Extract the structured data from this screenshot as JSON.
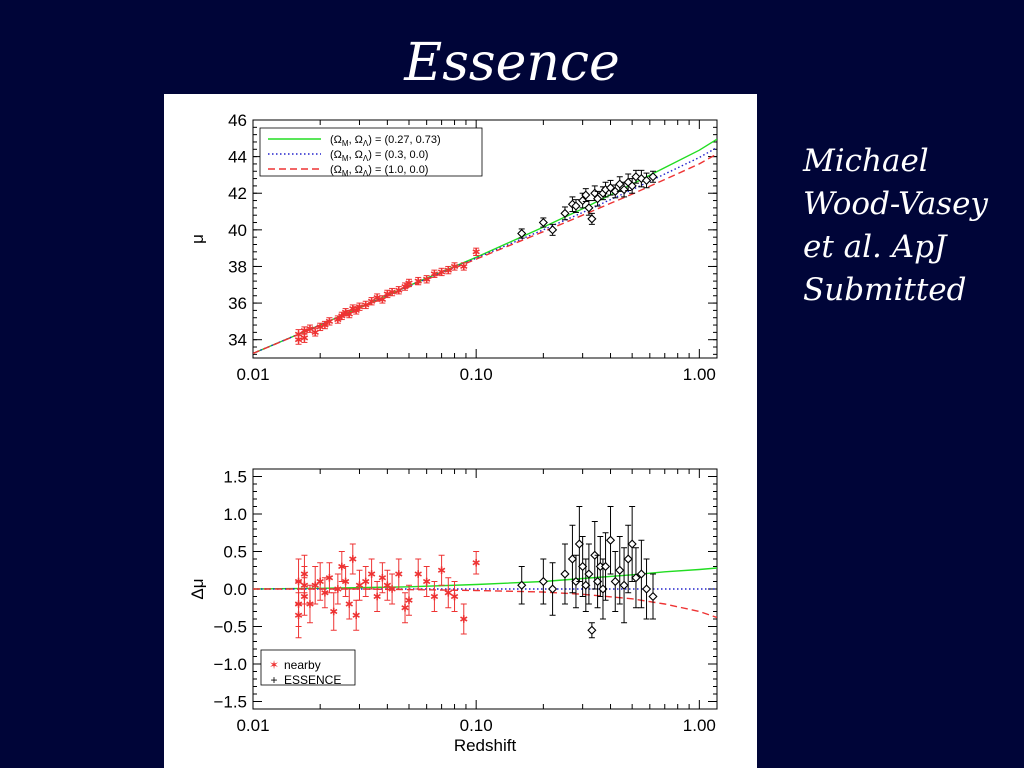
{
  "slide": {
    "title": "Essence",
    "credit_lines": [
      "Michael",
      "Wood-Vasey",
      "et al. ApJ",
      "Submitted"
    ],
    "background_color": "#000538",
    "title_color": "#ffffff"
  },
  "chart_data": [
    {
      "type": "scatter",
      "xscale": "log",
      "xlim": [
        0.01,
        1.2
      ],
      "ylim": [
        33.0,
        46.0
      ],
      "xticklabels": [
        "0.01",
        "0.10",
        "1.00"
      ],
      "xtickvalues": [
        0.01,
        0.1,
        1.0
      ],
      "yticks": [
        34,
        36,
        38,
        40,
        42,
        44,
        46
      ],
      "xlabel": "",
      "ylabel": "μ",
      "legend_position": "top-left",
      "legend": [
        {
          "label": "(ΩM, ΩΛ) = (0.27, 0.73)",
          "style": "solid",
          "color": "#22dd22"
        },
        {
          "label": "(ΩM, ΩΛ) = (0.3, 0.0)",
          "style": "dotted",
          "color": "#2222cc"
        },
        {
          "label": "(ΩM, ΩΛ) = (1.0, 0.0)",
          "style": "dashed",
          "color": "#ee3333"
        }
      ],
      "model_curves": [
        {
          "name": "(0.27, 0.73)",
          "color": "#22dd22",
          "style": "solid",
          "x": [
            0.01,
            0.02,
            0.05,
            0.1,
            0.2,
            0.3,
            0.5,
            0.7,
            1.0,
            1.2
          ],
          "y": [
            33.25,
            34.8,
            36.95,
            38.5,
            40.15,
            41.15,
            42.5,
            43.4,
            44.35,
            44.95
          ]
        },
        {
          "name": "(0.3, 0.0)",
          "color": "#2222cc",
          "style": "dotted",
          "x": [
            0.01,
            0.02,
            0.05,
            0.1,
            0.2,
            0.3,
            0.5,
            0.7,
            1.0,
            1.2
          ],
          "y": [
            33.25,
            34.8,
            36.92,
            38.45,
            40.0,
            40.95,
            42.2,
            43.05,
            43.95,
            44.5
          ]
        },
        {
          "name": "(1.0, 0.0)",
          "color": "#ee3333",
          "style": "dashed",
          "x": [
            0.01,
            0.02,
            0.05,
            0.1,
            0.2,
            0.3,
            0.5,
            0.7,
            1.0,
            1.2
          ],
          "y": [
            33.25,
            34.78,
            36.88,
            38.4,
            39.9,
            40.8,
            41.95,
            42.75,
            43.6,
            44.15
          ]
        }
      ],
      "series": [
        {
          "name": "nearby",
          "marker": "asterisk",
          "color": "#ee3333",
          "x": [
            0.016,
            0.016,
            0.017,
            0.017,
            0.018,
            0.019,
            0.02,
            0.021,
            0.022,
            0.024,
            0.025,
            0.026,
            0.027,
            0.028,
            0.029,
            0.03,
            0.032,
            0.034,
            0.036,
            0.038,
            0.04,
            0.042,
            0.045,
            0.048,
            0.05,
            0.055,
            0.06,
            0.065,
            0.07,
            0.075,
            0.08,
            0.088,
            0.1
          ],
          "y": [
            34.0,
            34.3,
            34.1,
            34.5,
            34.6,
            34.4,
            34.7,
            34.8,
            35.0,
            35.1,
            35.3,
            35.5,
            35.4,
            35.7,
            35.6,
            35.8,
            35.9,
            36.1,
            36.3,
            36.2,
            36.5,
            36.6,
            36.7,
            36.9,
            37.1,
            37.2,
            37.3,
            37.6,
            37.7,
            37.8,
            38.0,
            38.0,
            38.8
          ],
          "err": [
            0.25,
            0.25,
            0.25,
            0.2,
            0.2,
            0.2,
            0.2,
            0.2,
            0.2,
            0.2,
            0.2,
            0.2,
            0.2,
            0.2,
            0.2,
            0.2,
            0.2,
            0.2,
            0.2,
            0.2,
            0.2,
            0.2,
            0.2,
            0.2,
            0.2,
            0.2,
            0.2,
            0.2,
            0.2,
            0.2,
            0.2,
            0.2,
            0.2
          ]
        },
        {
          "name": "ESSENCE",
          "marker": "diamond",
          "color": "#000000",
          "x": [
            0.16,
            0.2,
            0.22,
            0.25,
            0.27,
            0.28,
            0.3,
            0.31,
            0.32,
            0.33,
            0.34,
            0.35,
            0.37,
            0.38,
            0.4,
            0.42,
            0.44,
            0.46,
            0.48,
            0.5,
            0.52,
            0.55,
            0.58,
            0.62
          ],
          "y": [
            39.8,
            40.4,
            40.0,
            40.9,
            41.4,
            41.3,
            41.6,
            41.9,
            41.2,
            40.6,
            42.0,
            41.7,
            42.0,
            42.2,
            42.3,
            42.1,
            42.5,
            42.2,
            42.6,
            42.4,
            42.9,
            42.8,
            42.7,
            42.9
          ],
          "err": [
            0.25,
            0.25,
            0.3,
            0.35,
            0.4,
            0.35,
            0.4,
            0.35,
            0.4,
            0.3,
            0.4,
            0.4,
            0.35,
            0.4,
            0.4,
            0.35,
            0.4,
            0.4,
            0.45,
            0.4,
            0.35,
            0.45,
            0.4,
            0.3
          ]
        }
      ]
    },
    {
      "type": "scatter",
      "xscale": "log",
      "xlim": [
        0.01,
        1.2
      ],
      "ylim": [
        -1.6,
        1.6
      ],
      "xticklabels": [
        "0.01",
        "0.10",
        "1.00"
      ],
      "xtickvalues": [
        0.01,
        0.1,
        1.0
      ],
      "yticklabels": [
        "1.5",
        "1.0",
        "0.5",
        "0.0",
        "−0.5",
        "−1.0",
        "−1.5"
      ],
      "ytickvalues": [
        1.5,
        1.0,
        0.5,
        0.0,
        -0.5,
        -1.0,
        -1.5
      ],
      "xlabel": "Redshift",
      "ylabel": "Δμ",
      "legend_position": "bottom-left",
      "legend": [
        {
          "label": "nearby",
          "symbol": "✶",
          "color": "#ee3333"
        },
        {
          "label": "ESSENCE",
          "symbol": "+",
          "color": "#000000"
        }
      ],
      "model_curves": [
        {
          "name": "(0.27, 0.73)",
          "color": "#22dd22",
          "style": "solid",
          "x": [
            0.01,
            0.02,
            0.05,
            0.1,
            0.2,
            0.3,
            0.5,
            0.7,
            1.0,
            1.2
          ],
          "y": [
            0.0,
            0.01,
            0.03,
            0.06,
            0.1,
            0.14,
            0.19,
            0.23,
            0.26,
            0.28
          ]
        },
        {
          "name": "(0.3, 0.0)",
          "color": "#2222cc",
          "style": "dotted",
          "x": [
            0.01,
            1.2
          ],
          "y": [
            0.0,
            0.0
          ]
        },
        {
          "name": "(1.0, 0.0)",
          "color": "#ee3333",
          "style": "dashed",
          "x": [
            0.01,
            0.03,
            0.06,
            0.1,
            0.2,
            0.3,
            0.5,
            0.7,
            1.0,
            1.2
          ],
          "y": [
            0.0,
            0.0,
            -0.01,
            -0.02,
            -0.04,
            -0.07,
            -0.13,
            -0.2,
            -0.3,
            -0.38
          ]
        }
      ],
      "series": [
        {
          "name": "nearby",
          "marker": "asterisk",
          "color": "#ee3333",
          "x": [
            0.016,
            0.016,
            0.016,
            0.017,
            0.017,
            0.017,
            0.018,
            0.019,
            0.02,
            0.021,
            0.022,
            0.023,
            0.024,
            0.025,
            0.026,
            0.027,
            0.028,
            0.029,
            0.03,
            0.032,
            0.034,
            0.036,
            0.038,
            0.04,
            0.042,
            0.045,
            0.048,
            0.05,
            0.055,
            0.06,
            0.065,
            0.07,
            0.075,
            0.08,
            0.088,
            0.1
          ],
          "y": [
            0.1,
            -0.2,
            -0.35,
            0.2,
            -0.1,
            0.05,
            -0.2,
            0.05,
            0.1,
            -0.05,
            0.15,
            -0.3,
            0.0,
            0.3,
            0.1,
            -0.2,
            0.4,
            -0.35,
            0.05,
            0.1,
            0.2,
            -0.1,
            0.15,
            0.05,
            0.0,
            0.2,
            -0.25,
            -0.15,
            0.2,
            0.1,
            -0.1,
            0.25,
            -0.05,
            -0.1,
            -0.4,
            0.35
          ],
          "err": [
            0.3,
            0.3,
            0.3,
            0.25,
            0.25,
            0.25,
            0.25,
            0.25,
            0.25,
            0.2,
            0.2,
            0.25,
            0.2,
            0.2,
            0.2,
            0.2,
            0.2,
            0.2,
            0.2,
            0.2,
            0.2,
            0.2,
            0.2,
            0.2,
            0.2,
            0.2,
            0.2,
            0.2,
            0.2,
            0.2,
            0.2,
            0.2,
            0.2,
            0.2,
            0.2,
            0.15
          ]
        },
        {
          "name": "ESSENCE",
          "marker": "diamond",
          "color": "#000000",
          "x": [
            0.16,
            0.2,
            0.22,
            0.25,
            0.27,
            0.28,
            0.29,
            0.3,
            0.31,
            0.32,
            0.33,
            0.34,
            0.35,
            0.36,
            0.37,
            0.38,
            0.4,
            0.42,
            0.44,
            0.46,
            0.48,
            0.5,
            0.52,
            0.55,
            0.58,
            0.62
          ],
          "y": [
            0.05,
            0.1,
            0.0,
            0.2,
            0.4,
            0.1,
            0.6,
            0.3,
            0.05,
            0.2,
            -0.55,
            0.45,
            0.1,
            0.3,
            0.0,
            0.3,
            0.65,
            0.1,
            0.25,
            0.05,
            0.4,
            0.6,
            0.15,
            0.2,
            0.0,
            -0.1
          ],
          "err": [
            0.25,
            0.3,
            0.35,
            0.4,
            0.45,
            0.35,
            0.5,
            0.4,
            0.35,
            0.4,
            0.1,
            0.45,
            0.35,
            0.4,
            0.4,
            0.45,
            0.45,
            0.4,
            0.45,
            0.5,
            0.45,
            0.5,
            0.4,
            0.45,
            0.4,
            0.3
          ]
        }
      ]
    }
  ]
}
